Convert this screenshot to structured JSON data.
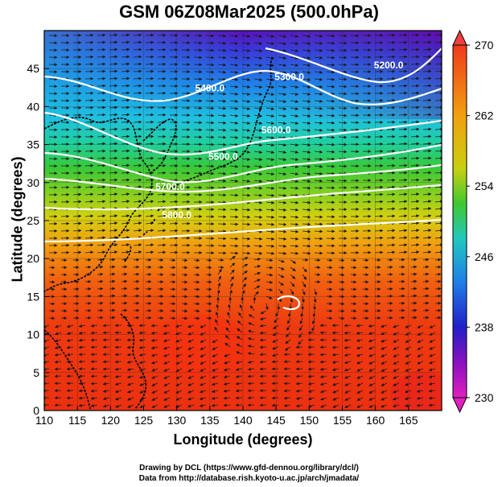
{
  "title": "GSM 06Z08Mar2025 (500.0hPa)",
  "x_axis": {
    "label": "Longitude (degrees)",
    "ticks": [
      "110",
      "115",
      "120",
      "125",
      "130",
      "135",
      "140",
      "145",
      "150",
      "155",
      "160",
      "165"
    ]
  },
  "y_axis": {
    "label": "Latitude  (degrees)",
    "ticks": [
      "0",
      "5",
      "10",
      "15",
      "20",
      "25",
      "30",
      "35",
      "40",
      "45"
    ]
  },
  "colorbar": {
    "ticks": [
      "230",
      "238",
      "246",
      "254",
      "262",
      "270"
    ],
    "min": 230,
    "max": 270
  },
  "contours": [
    {
      "label": "5400.0",
      "lon": 135,
      "lat": 42
    },
    {
      "label": "5300.0",
      "lon": 147,
      "lat": 43.5
    },
    {
      "label": "5200.0",
      "lon": 162,
      "lat": 45
    },
    {
      "label": "5500.0",
      "lon": 137,
      "lat": 33
    },
    {
      "label": "5600.0",
      "lon": 145,
      "lat": 36.5
    },
    {
      "label": "5700.0",
      "lon": 129,
      "lat": 29
    },
    {
      "label": "5800.0",
      "lon": 130,
      "lat": 25.3
    }
  ],
  "credits": {
    "line1": "Drawing by DCL (https://www.gfd-dennou.org/library/dcl/)",
    "line2": "Data from http://database.rish.kyoto-u.ac.jp/arch/jmadata/"
  },
  "colors": {
    "frame": "#000000",
    "contour": "#ffffff",
    "arrow": "#1a1a1a"
  }
}
